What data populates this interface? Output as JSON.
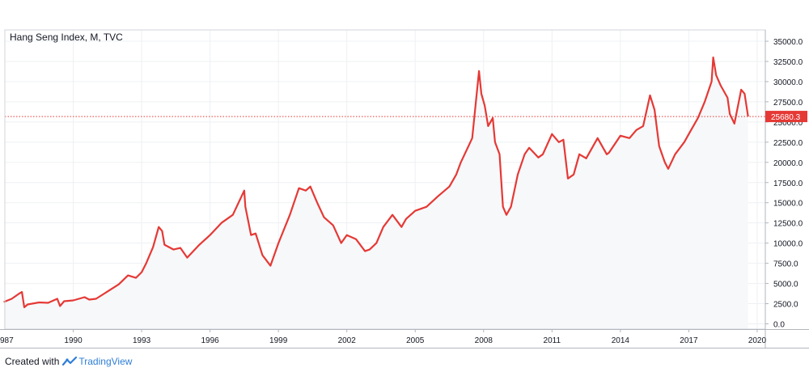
{
  "chart_data": {
    "type": "line",
    "title": "Hang Seng Index, M, TVC",
    "x_ticks": [
      "987",
      "1990",
      "1993",
      "1996",
      "1999",
      "2002",
      "2005",
      "2008",
      "2011",
      "2014",
      "2017",
      "2020"
    ],
    "y_ticks": [
      "35000.0",
      "32500.0",
      "30000.0",
      "27500.0",
      "25000.0",
      "22500.0",
      "20000.0",
      "17500.0",
      "15000.0",
      "12500.0",
      "10000.0",
      "7500.0",
      "5000.0",
      "2500.0",
      "0.0"
    ],
    "ylim": [
      0,
      35000
    ],
    "xlim": [
      1987.0,
      2020.0
    ],
    "last_value_label": "25680.3",
    "last_value": 25680.3,
    "grid": true,
    "series": [
      {
        "color": "#e53935",
        "x": [
          1986.95,
          1987.3,
          1987.6,
          1987.75,
          1987.85,
          1988.0,
          1988.5,
          1988.9,
          1989.3,
          1989.42,
          1989.6,
          1990.0,
          1990.5,
          1990.7,
          1991.0,
          1991.5,
          1992.0,
          1992.4,
          1992.75,
          1993.0,
          1993.2,
          1993.5,
          1993.75,
          1993.9,
          1994.0,
          1994.4,
          1994.7,
          1995.0,
          1995.5,
          1996.0,
          1996.5,
          1997.0,
          1997.5,
          1997.55,
          1997.8,
          1998.0,
          1998.3,
          1998.65,
          1999.0,
          1999.5,
          1999.9,
          2000.2,
          2000.4,
          2000.7,
          2001.0,
          2001.4,
          2001.75,
          2002.0,
          2002.4,
          2002.8,
          2003.0,
          2003.3,
          2003.6,
          2004.0,
          2004.4,
          2004.6,
          2005.0,
          2005.5,
          2006.0,
          2006.5,
          2006.8,
          2007.0,
          2007.3,
          2007.5,
          2007.8,
          2007.9,
          2008.05,
          2008.2,
          2008.4,
          2008.5,
          2008.7,
          2008.85,
          2009.0,
          2009.2,
          2009.5,
          2009.8,
          2010.0,
          2010.4,
          2010.6,
          2011.0,
          2011.3,
          2011.5,
          2011.7,
          2011.95,
          2012.2,
          2012.5,
          2013.0,
          2013.4,
          2013.5,
          2014.0,
          2014.4,
          2014.7,
          2015.0,
          2015.3,
          2015.5,
          2015.7,
          2015.95,
          2016.1,
          2016.4,
          2016.8,
          2017.0,
          2017.4,
          2017.7,
          2018.0,
          2018.07,
          2018.2,
          2018.4,
          2018.7,
          2018.8,
          2019.0,
          2019.3,
          2019.45,
          2019.6
        ],
        "y": [
          2700,
          3100,
          3700,
          3950,
          2050,
          2400,
          2650,
          2600,
          3100,
          2200,
          2800,
          2900,
          3300,
          3000,
          3100,
          4000,
          4900,
          6000,
          5700,
          6400,
          7500,
          9500,
          12000,
          11500,
          9800,
          9200,
          9400,
          8200,
          9700,
          11000,
          12500,
          13500,
          16500,
          14500,
          11000,
          11200,
          8500,
          7200,
          10000,
          13500,
          16800,
          16500,
          17000,
          15000,
          13200,
          12200,
          10000,
          11000,
          10500,
          9000,
          9200,
          10000,
          12000,
          13500,
          12000,
          13000,
          14000,
          14500,
          15800,
          17000,
          18500,
          20000,
          21800,
          23000,
          31300,
          28500,
          27000,
          24500,
          25500,
          22500,
          21000,
          14500,
          13500,
          14500,
          18500,
          21000,
          21800,
          20600,
          21000,
          23500,
          22500,
          22800,
          18000,
          18500,
          21000,
          20500,
          23000,
          21000,
          21200,
          23300,
          23000,
          24000,
          24500,
          28300,
          26500,
          22000,
          20000,
          19200,
          21000,
          22500,
          23500,
          25500,
          27500,
          30000,
          33000,
          30800,
          29500,
          28000,
          26000,
          24800,
          29000,
          28500,
          25680.3
        ]
      }
    ]
  },
  "footer": {
    "created_with": "Created with",
    "brand": "TradingView"
  }
}
